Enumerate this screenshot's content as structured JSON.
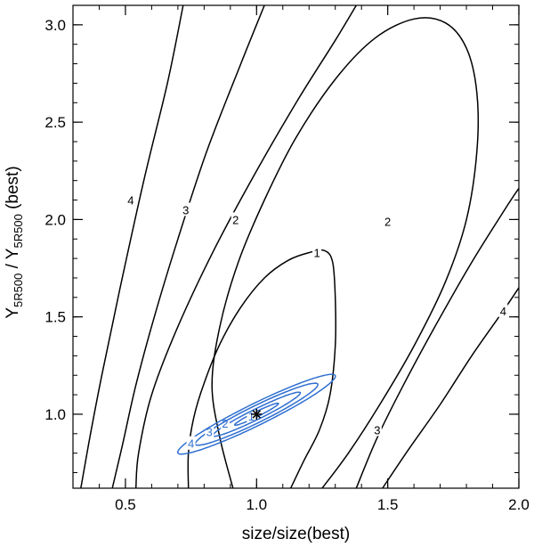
{
  "chart_data": {
    "type": "contour",
    "title": "",
    "xlabel": "size/size(best)",
    "ylabel": {
      "main": "Y",
      "sub": "5R500",
      "sep": " / ",
      "suffix": " (best)"
    },
    "xlim": [
      0.3,
      2.0
    ],
    "ylim": [
      0.62,
      3.1
    ],
    "xticks": [
      0.5,
      1.0,
      1.5,
      2.0
    ],
    "xtick_labels": [
      "0.5",
      "1.0",
      "1.5",
      "2.0"
    ],
    "yticks": [
      1.0,
      1.5,
      2.0,
      2.5,
      3.0
    ],
    "ytick_labels": [
      "1.0",
      "1.5",
      "2.0",
      "2.5",
      "3.0"
    ],
    "colors": {
      "black": "#000000",
      "blue": "#2f6fd0"
    },
    "best_fit": {
      "x": 1.0,
      "y": 1.0,
      "marker": "asterisk"
    },
    "series": [
      {
        "name": "black-1",
        "level": "1",
        "color": "#000000",
        "label_at": [
          1.23,
          1.83
        ],
        "points": [
          [
            0.74,
            0.62
          ],
          [
            0.74,
            0.8
          ],
          [
            0.76,
            0.98
          ],
          [
            0.8,
            1.16
          ],
          [
            0.86,
            1.36
          ],
          [
            0.94,
            1.55
          ],
          [
            1.03,
            1.7
          ],
          [
            1.12,
            1.79
          ],
          [
            1.2,
            1.83
          ],
          [
            1.26,
            1.84
          ],
          [
            1.29,
            1.78
          ],
          [
            1.3,
            1.6
          ],
          [
            1.3,
            1.35
          ],
          [
            1.28,
            1.1
          ],
          [
            1.24,
            0.92
          ],
          [
            1.18,
            0.76
          ],
          [
            1.13,
            0.62
          ]
        ]
      },
      {
        "name": "black-2-inner",
        "level": "2",
        "color": "#000000",
        "label_at": [
          1.5,
          1.99
        ],
        "points": [
          [
            0.91,
            0.62
          ],
          [
            0.86,
            0.88
          ],
          [
            0.83,
            1.15
          ],
          [
            0.86,
            1.45
          ],
          [
            0.93,
            1.78
          ],
          [
            1.03,
            2.1
          ],
          [
            1.15,
            2.42
          ],
          [
            1.3,
            2.72
          ],
          [
            1.45,
            2.93
          ],
          [
            1.6,
            3.03
          ],
          [
            1.72,
            3.01
          ],
          [
            1.8,
            2.88
          ],
          [
            1.84,
            2.65
          ],
          [
            1.84,
            2.35
          ],
          [
            1.8,
            2.0
          ],
          [
            1.72,
            1.68
          ],
          [
            1.6,
            1.35
          ],
          [
            1.47,
            1.05
          ],
          [
            1.35,
            0.8
          ],
          [
            1.25,
            0.62
          ]
        ]
      },
      {
        "name": "black-2-left",
        "level": "2",
        "color": "#000000",
        "label_at": [
          0.92,
          2.0
        ],
        "points": [
          [
            0.54,
            0.62
          ],
          [
            0.55,
            0.8
          ],
          [
            0.6,
            1.1
          ],
          [
            0.7,
            1.45
          ],
          [
            0.84,
            1.85
          ],
          [
            1.0,
            2.25
          ],
          [
            1.16,
            2.62
          ],
          [
            1.3,
            2.92
          ],
          [
            1.38,
            3.1
          ]
        ]
      },
      {
        "name": "black-3",
        "level": "3",
        "color": "#000000",
        "label_at": [
          0.73,
          2.05
        ],
        "points": [
          [
            0.45,
            0.62
          ],
          [
            0.49,
            0.85
          ],
          [
            0.54,
            1.15
          ],
          [
            0.61,
            1.5
          ],
          [
            0.7,
            1.9
          ],
          [
            0.81,
            2.35
          ],
          [
            0.94,
            2.8
          ],
          [
            1.03,
            3.1
          ]
        ]
      },
      {
        "name": "black-4",
        "level": "4",
        "color": "#000000",
        "label_at": [
          0.52,
          2.1
        ],
        "points": [
          [
            0.33,
            0.62
          ],
          [
            0.36,
            0.85
          ],
          [
            0.41,
            1.2
          ],
          [
            0.48,
            1.65
          ],
          [
            0.57,
            2.2
          ],
          [
            0.66,
            2.7
          ],
          [
            0.72,
            3.1
          ]
        ]
      },
      {
        "name": "black-3-right",
        "level": "3",
        "color": "#000000",
        "label_at": [
          1.46,
          0.92
        ],
        "points": [
          [
            1.38,
            0.62
          ],
          [
            1.46,
            0.88
          ],
          [
            1.56,
            1.15
          ],
          [
            1.68,
            1.45
          ],
          [
            1.82,
            1.78
          ],
          [
            1.96,
            2.08
          ],
          [
            2.0,
            2.16
          ]
        ]
      },
      {
        "name": "black-4-right",
        "level": "4",
        "color": "#000000",
        "label_at": [
          1.94,
          1.53
        ],
        "points": [
          [
            1.48,
            0.62
          ],
          [
            1.58,
            0.82
          ],
          [
            1.7,
            1.05
          ],
          [
            1.82,
            1.3
          ],
          [
            1.94,
            1.53
          ],
          [
            2.0,
            1.65
          ]
        ]
      },
      {
        "name": "blue-1",
        "level": "1",
        "color": "#2f6fd0",
        "label_at": [
          0.98,
          0.99
        ],
        "ellipse": {
          "cx": 1.0,
          "cy": 1.0,
          "a": 0.1,
          "b": 0.012,
          "angle_data": 0.67
        }
      },
      {
        "name": "blue-2",
        "level": "2",
        "color": "#2f6fd0",
        "label_at": [
          0.88,
          0.955
        ],
        "ellipse": {
          "cx": 1.0,
          "cy": 1.0,
          "a": 0.2,
          "b": 0.025,
          "angle_data": 0.67
        }
      },
      {
        "name": "blue-3",
        "level": "3",
        "color": "#2f6fd0",
        "label_at": [
          0.82,
          0.91
        ],
        "ellipse": {
          "cx": 1.0,
          "cy": 1.0,
          "a": 0.28,
          "b": 0.04,
          "angle_data": 0.67
        }
      },
      {
        "name": "blue-4",
        "level": "4",
        "color": "#2f6fd0",
        "label_at": [
          0.75,
          0.85
        ],
        "ellipse": {
          "cx": 1.0,
          "cy": 1.0,
          "a": 0.36,
          "b": 0.052,
          "angle_data": 0.67
        }
      }
    ]
  }
}
